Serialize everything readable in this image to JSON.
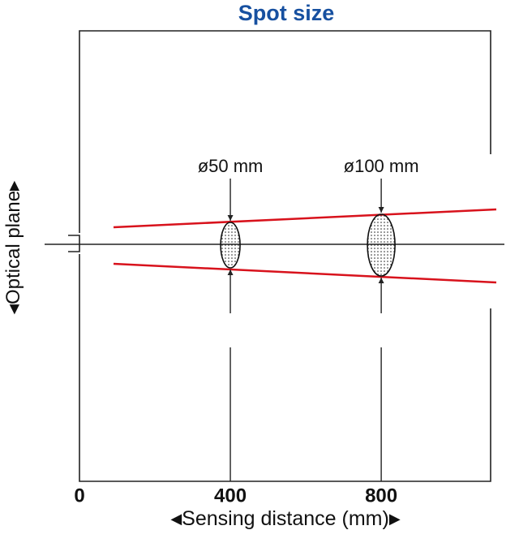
{
  "chart_data": {
    "type": "spot-diagram",
    "title": "Spot size",
    "xlabel": "Sensing distance (mm)",
    "ylabel": "Optical plane",
    "xlim": [
      0,
      1090
    ],
    "xticks": [
      0,
      400,
      800
    ],
    "spots": [
      {
        "label": "ø50 mm",
        "x": 400
      },
      {
        "label": "ø100 mm",
        "x": 800
      }
    ]
  }
}
